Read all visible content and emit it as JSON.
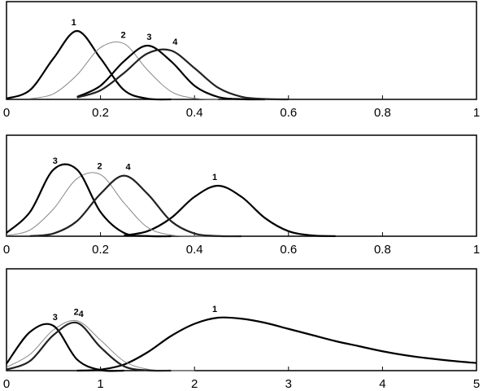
{
  "chart_data": [
    {
      "type": "line",
      "xlim": [
        0,
        1
      ],
      "ylim": [
        0,
        1
      ],
      "xticks": [
        0,
        0.2,
        0.4,
        0.6,
        0.8,
        1
      ],
      "x": [
        0,
        0.05,
        0.1,
        0.15,
        0.2,
        0.25,
        0.3,
        0.35,
        0.4,
        0.45,
        0.5,
        0.55,
        0.6,
        0.65,
        0.7
      ],
      "series": [
        {
          "name": "1",
          "color": "#000000",
          "values": [
            0.008,
            0.095,
            0.42,
            0.7,
            0.42,
            0.095,
            0.008,
            0,
            null,
            null,
            null,
            null,
            null,
            null,
            null
          ]
        },
        {
          "name": "2",
          "color": "#888888",
          "values": [
            null,
            0.007,
            0.057,
            0.25,
            0.53,
            0.57,
            0.3,
            0.081,
            0.011,
            0,
            null,
            null,
            null,
            null,
            null
          ]
        },
        {
          "name": "3",
          "color": "#000000",
          "values": [
            null,
            null,
            null,
            0.025,
            0.14,
            0.39,
            0.55,
            0.39,
            0.14,
            0.025,
            0.002,
            0,
            null,
            null,
            null
          ]
        },
        {
          "name": "4",
          "color": "#222222",
          "values": [
            null,
            null,
            null,
            0.019,
            0.093,
            0.27,
            0.47,
            0.5,
            0.32,
            0.12,
            0.027,
            0.004,
            0,
            null,
            null
          ]
        }
      ]
    },
    {
      "type": "line",
      "xlim": [
        0,
        1
      ],
      "ylim": [
        0,
        1
      ],
      "xticks": [
        0,
        0.2,
        0.4,
        0.6,
        0.8,
        1
      ],
      "x": [
        0,
        0.05,
        0.1,
        0.15,
        0.2,
        0.25,
        0.3,
        0.35,
        0.4,
        0.45,
        0.5,
        0.55,
        0.6,
        0.65,
        0.7
      ],
      "series": [
        {
          "name": "1",
          "color": "#000000",
          "values": [
            null,
            null,
            null,
            null,
            null,
            0.008,
            0.05,
            0.18,
            0.39,
            0.5,
            0.39,
            0.18,
            0.05,
            0.008,
            0.001
          ]
        },
        {
          "name": "2",
          "color": "#888888",
          "values": [
            0.007,
            0.062,
            0.27,
            0.57,
            0.61,
            0.33,
            0.088,
            0.012,
            0.001,
            0,
            null,
            null,
            null,
            null,
            null
          ]
        },
        {
          "name": "3",
          "color": "#000000",
          "values": [
            0.033,
            0.24,
            0.66,
            0.66,
            0.24,
            0.033,
            0.002,
            0,
            null,
            null,
            null,
            null,
            null,
            null,
            null
          ]
        },
        {
          "name": "4",
          "color": "#222222",
          "values": [
            null,
            0.002,
            0.027,
            0.15,
            0.42,
            0.6,
            0.42,
            0.15,
            0.027,
            0.002,
            0,
            null,
            null,
            null,
            null
          ]
        }
      ]
    },
    {
      "type": "line",
      "xlim": [
        0,
        5
      ],
      "ylim": [
        0,
        1
      ],
      "xticks": [
        0,
        1,
        2,
        3,
        4,
        5
      ],
      "x": [
        0,
        0.25,
        0.5,
        0.75,
        1,
        1.25,
        1.5,
        1.75,
        2,
        2.25,
        2.5,
        2.75,
        3,
        3.25,
        3.5,
        3.75,
        4,
        4.25,
        4.5,
        4.75,
        5
      ],
      "series": [
        {
          "name": "1",
          "color": "#000000",
          "values": [
            null,
            null,
            null,
            0,
            0.01,
            0.06,
            0.18,
            0.34,
            0.46,
            0.52,
            0.51,
            0.47,
            0.41,
            0.35,
            0.29,
            0.24,
            0.19,
            0.15,
            0.12,
            0.095,
            0.075
          ]
        },
        {
          "name": "2",
          "color": "#888888",
          "values": [
            0.033,
            0.16,
            0.4,
            0.49,
            0.3,
            0.093,
            0.014,
            0.001,
            0,
            null,
            null,
            null,
            null,
            null,
            null,
            null,
            null,
            null,
            null,
            null,
            null
          ]
        },
        {
          "name": "3",
          "color": "#000000",
          "values": [
            0.068,
            0.38,
            0.44,
            0.11,
            0.006,
            0,
            null,
            null,
            null,
            null,
            null,
            null,
            null,
            null,
            null,
            null,
            null,
            null,
            null,
            null,
            null
          ]
        },
        {
          "name": "4",
          "color": "#222222",
          "values": [
            0.01,
            0.095,
            0.35,
            0.47,
            0.23,
            0.043,
            0.003,
            0,
            null,
            null,
            null,
            null,
            null,
            null,
            null,
            null,
            null,
            null,
            null,
            null,
            null
          ]
        }
      ]
    }
  ]
}
